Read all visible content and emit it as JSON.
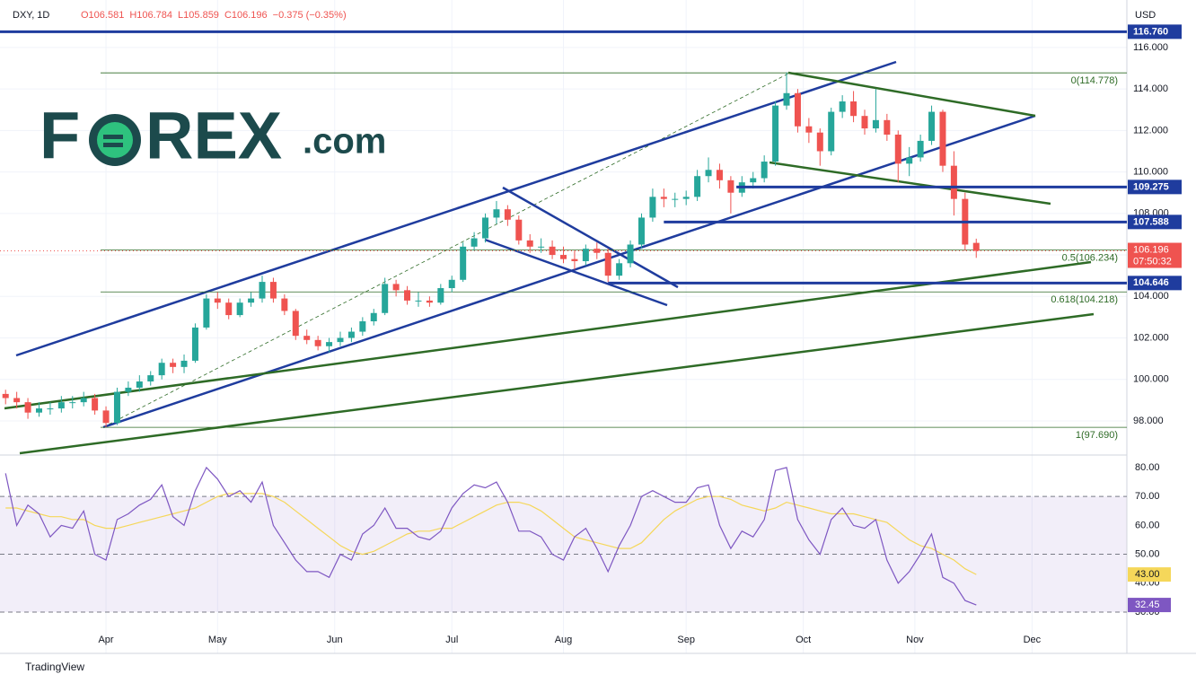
{
  "chart_data": {
    "type": "candlestick",
    "symbol": "DXY, 1D",
    "header": [
      "O106.581",
      "H106.784",
      "L105.859",
      "C106.196",
      "−0.375 (−0.35%)"
    ],
    "currency": "USD",
    "logo": [
      "F",
      "REX",
      ".com"
    ],
    "footer": "TradingView",
    "x": [
      0,
      2,
      4,
      6,
      8,
      10,
      12,
      14,
      16,
      18,
      20,
      22,
      24,
      26,
      28,
      30,
      32,
      34,
      36,
      38,
      40,
      42,
      44,
      46,
      48,
      50,
      52,
      54,
      56,
      58,
      60,
      62,
      64,
      66,
      68,
      70,
      72,
      74,
      76,
      78,
      80,
      82,
      84,
      86,
      88,
      90,
      92,
      94,
      96,
      98,
      100,
      102,
      104,
      106,
      108,
      110,
      112,
      114,
      116,
      118,
      120,
      122,
      124,
      126,
      128,
      130,
      132,
      134,
      136,
      138,
      140,
      142,
      144,
      146,
      148,
      150,
      152,
      154,
      156,
      158,
      160,
      162,
      164,
      166,
      168,
      170,
      172,
      174
    ],
    "xlim": [
      -1,
      201
    ],
    "xticks": [
      {
        "value": 18,
        "label": "Apr"
      },
      {
        "value": 38,
        "label": "May"
      },
      {
        "value": 59,
        "label": "Jun"
      },
      {
        "value": 80,
        "label": "Jul"
      },
      {
        "value": 100,
        "label": "Aug"
      },
      {
        "value": 122,
        "label": "Sep"
      },
      {
        "value": 143,
        "label": "Oct"
      },
      {
        "value": 163,
        "label": "Nov"
      },
      {
        "value": 184,
        "label": "Dec"
      }
    ],
    "ohlc": [
      [
        99.3,
        99.5,
        98.8,
        99.1
      ],
      [
        99.1,
        99.4,
        98.6,
        98.9
      ],
      [
        98.9,
        99.1,
        98.1,
        98.4
      ],
      [
        98.4,
        98.9,
        98.2,
        98.6
      ],
      [
        98.6,
        98.9,
        98.3,
        98.6
      ],
      [
        98.6,
        99.2,
        98.4,
        98.9
      ],
      [
        98.9,
        99.2,
        98.6,
        98.9
      ],
      [
        98.9,
        99.4,
        98.7,
        99.1
      ],
      [
        99.1,
        99.3,
        98.3,
        98.5
      ],
      [
        98.5,
        98.7,
        97.7,
        97.9
      ],
      [
        97.9,
        99.6,
        97.8,
        99.4
      ],
      [
        99.4,
        99.9,
        99.2,
        99.6
      ],
      [
        99.6,
        100.2,
        99.4,
        99.9
      ],
      [
        99.9,
        100.4,
        99.7,
        100.2
      ],
      [
        100.2,
        101.0,
        100.0,
        100.8
      ],
      [
        100.8,
        101.0,
        100.3,
        100.6
      ],
      [
        100.6,
        101.2,
        100.3,
        100.9
      ],
      [
        100.9,
        102.7,
        100.8,
        102.5
      ],
      [
        102.5,
        104.1,
        102.4,
        103.9
      ],
      [
        103.9,
        104.2,
        103.4,
        103.7
      ],
      [
        103.7,
        103.9,
        102.9,
        103.1
      ],
      [
        103.1,
        103.9,
        103.0,
        103.7
      ],
      [
        103.7,
        104.2,
        103.5,
        103.9
      ],
      [
        103.9,
        105.0,
        103.7,
        104.7
      ],
      [
        104.7,
        104.9,
        103.7,
        103.9
      ],
      [
        103.9,
        104.1,
        103.1,
        103.3
      ],
      [
        103.3,
        103.4,
        101.9,
        102.1
      ],
      [
        102.1,
        102.4,
        101.7,
        101.9
      ],
      [
        101.9,
        102.1,
        101.4,
        101.6
      ],
      [
        101.6,
        102.0,
        101.3,
        101.8
      ],
      [
        101.8,
        102.3,
        101.6,
        102.0
      ],
      [
        102.0,
        102.5,
        101.8,
        102.3
      ],
      [
        102.3,
        103.0,
        102.1,
        102.8
      ],
      [
        102.8,
        103.4,
        102.6,
        103.2
      ],
      [
        103.2,
        104.9,
        103.1,
        104.6
      ],
      [
        104.6,
        104.8,
        104.0,
        104.3
      ],
      [
        104.3,
        104.5,
        103.6,
        103.8
      ],
      [
        103.8,
        104.2,
        103.5,
        103.8
      ],
      [
        103.8,
        104.0,
        103.5,
        103.7
      ],
      [
        103.7,
        104.6,
        103.6,
        104.4
      ],
      [
        104.4,
        105.0,
        104.2,
        104.8
      ],
      [
        104.8,
        106.6,
        104.7,
        106.4
      ],
      [
        106.4,
        107.1,
        106.2,
        106.8
      ],
      [
        106.8,
        108.0,
        106.6,
        107.8
      ],
      [
        107.8,
        108.6,
        107.5,
        108.2
      ],
      [
        108.2,
        108.4,
        107.4,
        107.7
      ],
      [
        107.7,
        107.9,
        106.5,
        106.7
      ],
      [
        106.7,
        107.0,
        106.1,
        106.4
      ],
      [
        106.4,
        106.8,
        106.1,
        106.4
      ],
      [
        106.4,
        106.7,
        105.8,
        106.0
      ],
      [
        106.0,
        106.4,
        105.6,
        105.8
      ],
      [
        105.8,
        106.2,
        105.3,
        105.7
      ],
      [
        105.7,
        106.5,
        105.5,
        106.3
      ],
      [
        106.3,
        106.6,
        105.8,
        106.1
      ],
      [
        106.1,
        106.3,
        104.7,
        105.0
      ],
      [
        105.0,
        105.8,
        104.8,
        105.6
      ],
      [
        105.6,
        106.7,
        105.4,
        106.5
      ],
      [
        106.5,
        108.0,
        106.3,
        107.8
      ],
      [
        107.8,
        109.2,
        107.6,
        108.8
      ],
      [
        108.8,
        109.2,
        108.3,
        108.7
      ],
      [
        108.7,
        109.0,
        108.3,
        108.7
      ],
      [
        108.7,
        109.1,
        108.4,
        108.8
      ],
      [
        108.8,
        110.1,
        108.6,
        109.8
      ],
      [
        109.8,
        110.7,
        109.5,
        110.1
      ],
      [
        110.1,
        110.4,
        109.2,
        109.6
      ],
      [
        109.6,
        109.8,
        108.0,
        109.0
      ],
      [
        109.0,
        109.8,
        108.8,
        109.5
      ],
      [
        109.5,
        110.0,
        109.2,
        109.7
      ],
      [
        109.7,
        110.8,
        109.5,
        110.5
      ],
      [
        110.5,
        113.4,
        110.3,
        113.2
      ],
      [
        113.2,
        114.8,
        113.0,
        113.8
      ],
      [
        113.8,
        114.0,
        111.9,
        112.2
      ],
      [
        112.2,
        112.6,
        111.4,
        111.9
      ],
      [
        111.9,
        112.1,
        110.3,
        111.0
      ],
      [
        111.0,
        113.1,
        110.8,
        112.9
      ],
      [
        112.9,
        113.7,
        112.6,
        113.4
      ],
      [
        113.4,
        113.9,
        112.4,
        112.7
      ],
      [
        112.7,
        113.0,
        111.8,
        112.1
      ],
      [
        112.1,
        114.0,
        111.9,
        112.5
      ],
      [
        112.5,
        112.8,
        111.5,
        111.8
      ],
      [
        111.8,
        112.0,
        109.5,
        110.4
      ],
      [
        110.4,
        111.2,
        109.8,
        110.7
      ],
      [
        110.7,
        111.8,
        110.5,
        111.5
      ],
      [
        111.5,
        113.2,
        111.3,
        112.9
      ],
      [
        112.9,
        113.0,
        110.0,
        110.3
      ],
      [
        110.3,
        111.0,
        107.9,
        108.7
      ],
      [
        108.7,
        109.0,
        106.2,
        106.5
      ],
      [
        106.581,
        106.784,
        105.859,
        106.196
      ]
    ],
    "up_color": "#26a69a",
    "down_color": "#ef5350",
    "ylim": [
      96.44,
      118.29
    ],
    "yticks": [
      {
        "value": 98,
        "label": "98.000"
      },
      {
        "value": 100,
        "label": "100.000"
      },
      {
        "value": 102,
        "label": "102.000"
      },
      {
        "value": 104,
        "label": "104.000"
      },
      {
        "value": 106,
        "label": "106.000"
      },
      {
        "value": 108,
        "label": "108.000"
      },
      {
        "value": 110,
        "label": "110.000"
      },
      {
        "value": 112,
        "label": "112.000"
      },
      {
        "value": 114,
        "label": "114.000"
      },
      {
        "value": 116,
        "label": "116.000"
      }
    ],
    "levels": [
      {
        "value": 116.76,
        "label": "116.760",
        "from": -1
      },
      {
        "value": 109.275,
        "from": 131
      },
      {
        "value": 107.588,
        "from": 118
      },
      {
        "value": 104.646,
        "from": 108
      }
    ],
    "fib": [
      {
        "value": 114.778,
        "label": "0(114.778)"
      },
      {
        "value": 106.234,
        "label": "0.5(106.234)"
      },
      {
        "value": 104.218,
        "label": "0.618(104.218)"
      },
      {
        "value": 97.69,
        "label": "1(97.690)"
      }
    ],
    "countdown": "07:50:32",
    "rsi": {
      "color": "#7e57c2",
      "ma_color": "#f5d75a",
      "ma_badge": "43.00",
      "values": [
        78,
        60,
        67,
        64,
        56,
        60,
        59,
        65,
        50,
        48,
        62,
        64,
        67,
        69,
        74,
        63,
        60,
        72,
        80,
        76,
        70,
        72,
        68,
        75,
        60,
        54,
        48,
        44,
        44,
        42,
        50,
        48,
        57,
        60,
        66,
        59,
        59,
        56,
        55,
        58,
        66,
        71,
        74,
        73,
        75,
        68,
        58,
        58,
        56,
        50,
        48,
        56,
        59,
        52,
        44,
        53,
        60,
        70,
        72,
        70,
        68,
        68,
        73,
        74,
        60,
        52,
        58,
        56,
        62,
        79,
        80,
        62,
        55,
        50,
        62,
        66,
        60,
        59,
        62,
        48,
        40,
        44,
        50,
        57,
        42,
        40,
        34,
        32.45
      ],
      "ma": [
        66,
        66,
        65,
        64,
        63,
        63,
        62,
        62,
        60,
        59,
        59,
        60,
        61,
        62,
        63,
        64,
        65,
        66,
        68,
        70,
        71,
        71,
        71,
        71,
        70,
        68,
        65,
        62,
        59,
        56,
        53,
        51,
        50,
        51,
        53,
        55,
        57,
        58,
        58,
        59,
        59,
        61,
        63,
        65,
        67,
        68,
        68,
        67,
        65,
        62,
        59,
        56,
        55,
        54,
        53,
        52,
        52,
        54,
        58,
        62,
        65,
        67,
        69,
        70,
        70,
        69,
        67,
        66,
        65,
        66,
        68,
        67,
        66,
        65,
        64,
        64,
        64,
        63,
        62,
        61,
        58,
        55,
        53,
        52,
        50,
        48,
        45,
        43
      ],
      "ylim": [
        24.4,
        83.4
      ],
      "yticks": [
        {
          "value": 30,
          "label": "30.00"
        },
        {
          "value": 40,
          "label": "40.00"
        },
        {
          "value": 50,
          "label": "50.00"
        },
        {
          "value": 60,
          "label": "60.00"
        },
        {
          "value": 70,
          "label": "70.00"
        },
        {
          "value": 80,
          "label": "80.00"
        }
      ],
      "band": [
        30,
        70
      ]
    }
  }
}
